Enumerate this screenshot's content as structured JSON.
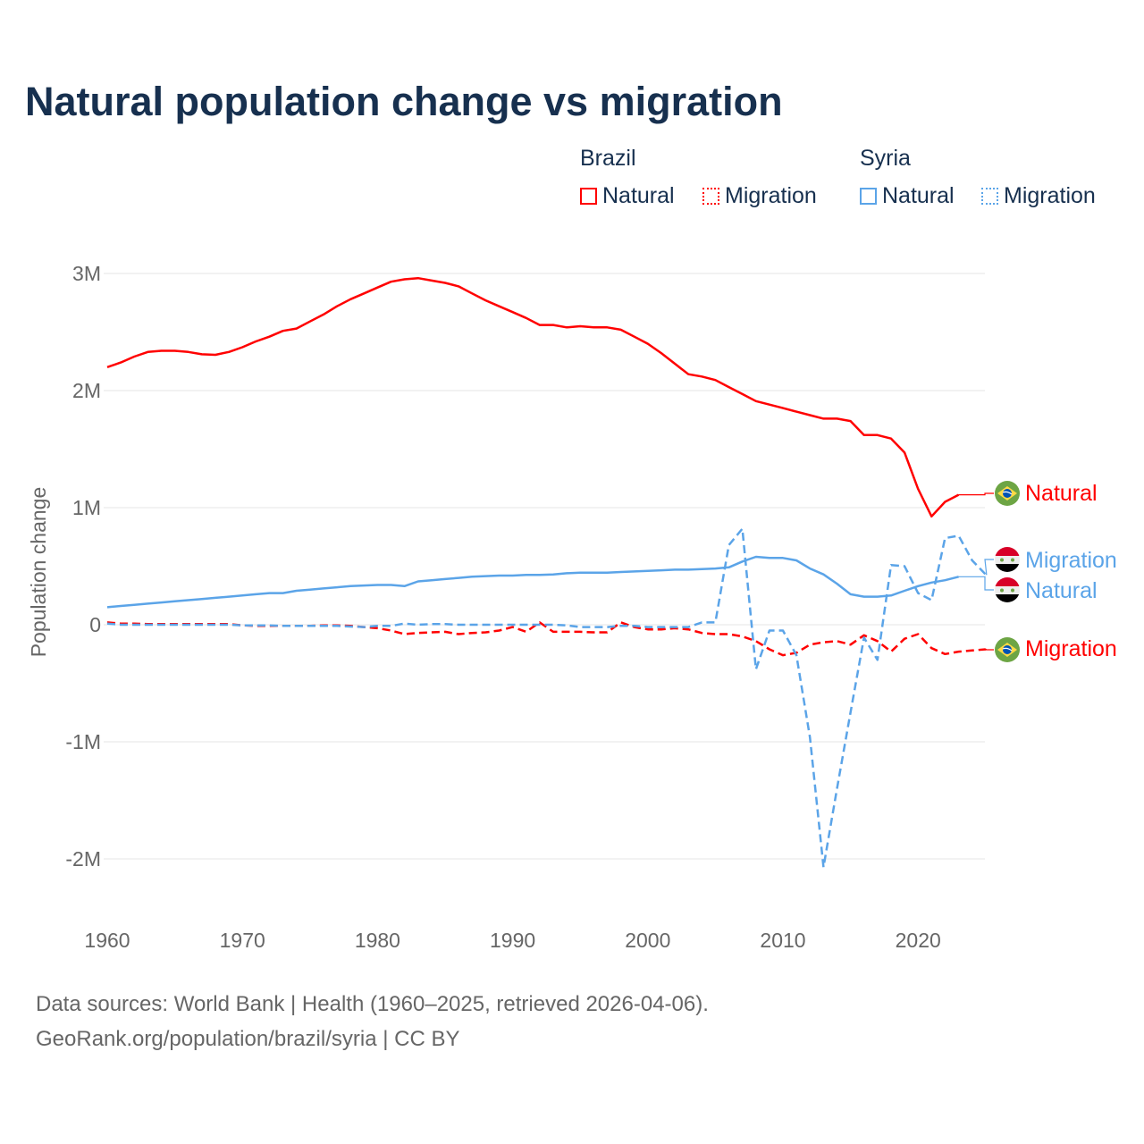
{
  "title": "Natural population change vs migration",
  "legend": {
    "groups": [
      {
        "name": "Brazil",
        "items": [
          "Natural",
          "Migration"
        ]
      },
      {
        "name": "Syria",
        "items": [
          "Natural",
          "Migration"
        ]
      }
    ]
  },
  "colors": {
    "brazil": "#ff0000",
    "syria": "#5ba4e8",
    "grid": "#e6e6e6"
  },
  "footer": {
    "line1": "Data sources: World Bank | Health (1960–2025, retrieved 2026-04-06).",
    "line2": "GeoRank.org/population/brazil/syria | CC BY"
  },
  "end_labels": {
    "brazil_natural": "Natural",
    "syria_migration": "Migration",
    "syria_natural": "Natural",
    "brazil_migration": "Migration"
  },
  "chart_data": {
    "type": "line",
    "title": "Natural population change vs migration",
    "xlabel": "",
    "ylabel": "Population change",
    "unit": "millions",
    "xlim": [
      1960,
      2025
    ],
    "ylim": [
      -2.3,
      3.1
    ],
    "grid": true,
    "legend_placement": "top-right",
    "x_ticks": [
      1960,
      1970,
      1980,
      1990,
      2000,
      2010,
      2020
    ],
    "x_tick_labels": [
      "1960",
      "1970",
      "1980",
      "1990",
      "2000",
      "2010",
      "2020"
    ],
    "y_ticks": [
      3,
      2,
      1,
      0,
      -1,
      -2
    ],
    "y_tick_labels": [
      "3M",
      "2M",
      "1M",
      "0",
      "-1M",
      "-2M"
    ],
    "series": [
      {
        "name": "Brazil Natural",
        "country": "Brazil",
        "kind": "Natural",
        "start": 1960,
        "values": [
          2.2,
          2.24,
          2.29,
          2.33,
          2.34,
          2.34,
          2.33,
          2.31,
          2.305,
          2.33,
          2.37,
          2.42,
          2.46,
          2.51,
          2.53,
          2.59,
          2.65,
          2.72,
          2.78,
          2.83,
          2.88,
          2.93,
          2.95,
          2.96,
          2.94,
          2.92,
          2.89,
          2.83,
          2.77,
          2.72,
          2.67,
          2.62,
          2.56,
          2.56,
          2.54,
          2.55,
          2.54,
          2.54,
          2.52,
          2.46,
          2.4,
          2.32,
          2.23,
          2.14,
          2.12,
          2.09,
          2.03,
          1.97,
          1.91,
          1.88,
          1.85,
          1.82,
          1.79,
          1.76,
          1.76,
          1.74,
          1.62,
          1.62,
          1.59,
          1.47,
          1.16,
          0.925,
          1.05,
          1.11
        ]
      },
      {
        "name": "Brazil Migration",
        "country": "Brazil",
        "kind": "Migration",
        "start": 1960,
        "values": [
          0.02,
          0.01,
          0.01,
          0.005,
          0.005,
          0.005,
          0.005,
          0.005,
          0.005,
          0.005,
          -0.005,
          -0.01,
          -0.01,
          -0.01,
          -0.01,
          -0.01,
          -0.005,
          -0.005,
          -0.01,
          -0.02,
          -0.03,
          -0.05,
          -0.08,
          -0.07,
          -0.065,
          -0.06,
          -0.08,
          -0.07,
          -0.065,
          -0.05,
          -0.02,
          -0.06,
          0.02,
          -0.06,
          -0.06,
          -0.06,
          -0.065,
          -0.065,
          0.02,
          -0.02,
          -0.04,
          -0.04,
          -0.03,
          -0.04,
          -0.07,
          -0.08,
          -0.08,
          -0.1,
          -0.14,
          -0.21,
          -0.26,
          -0.24,
          -0.17,
          -0.15,
          -0.14,
          -0.17,
          -0.09,
          -0.14,
          -0.23,
          -0.12,
          -0.08,
          -0.2,
          -0.25,
          -0.23,
          -0.22,
          -0.21
        ]
      },
      {
        "name": "Syria Natural",
        "country": "Syria",
        "kind": "Natural",
        "start": 1960,
        "values": [
          0.15,
          0.16,
          0.17,
          0.18,
          0.19,
          0.2,
          0.21,
          0.22,
          0.23,
          0.24,
          0.25,
          0.26,
          0.27,
          0.27,
          0.29,
          0.3,
          0.31,
          0.32,
          0.33,
          0.335,
          0.34,
          0.34,
          0.33,
          0.37,
          0.38,
          0.39,
          0.4,
          0.41,
          0.415,
          0.42,
          0.42,
          0.425,
          0.425,
          0.43,
          0.44,
          0.445,
          0.445,
          0.445,
          0.45,
          0.455,
          0.46,
          0.465,
          0.47,
          0.47,
          0.475,
          0.48,
          0.49,
          0.54,
          0.58,
          0.57,
          0.57,
          0.55,
          0.48,
          0.43,
          0.35,
          0.26,
          0.24,
          0.24,
          0.25,
          0.29,
          0.33,
          0.36,
          0.38,
          0.41
        ]
      },
      {
        "name": "Syria Migration",
        "country": "Syria",
        "kind": "Migration",
        "start": 1960,
        "values": [
          0.01,
          0.0,
          0.0,
          0.0,
          0.0,
          0.0,
          0.0,
          0.0,
          0.0,
          0.0,
          -0.005,
          -0.005,
          -0.005,
          -0.01,
          -0.01,
          -0.01,
          -0.01,
          -0.01,
          -0.015,
          -0.02,
          -0.01,
          -0.01,
          0.01,
          0.0,
          0.005,
          0.005,
          0.0,
          0.0,
          0.0,
          0.0,
          0.0,
          0.0,
          0.0,
          0.0,
          -0.005,
          -0.02,
          -0.02,
          -0.02,
          -0.01,
          -0.01,
          -0.02,
          -0.02,
          -0.02,
          -0.02,
          0.02,
          0.02,
          0.68,
          0.82,
          -0.38,
          -0.05,
          -0.05,
          -0.26,
          -0.96,
          -2.07,
          -1.4,
          -0.75,
          -0.11,
          -0.3,
          0.51,
          0.5,
          0.27,
          0.21,
          0.74,
          0.76,
          0.55,
          0.43
        ]
      }
    ]
  }
}
